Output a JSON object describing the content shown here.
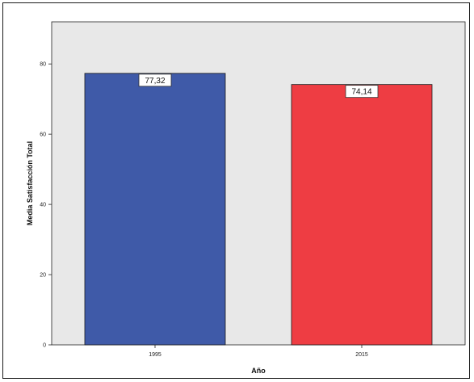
{
  "chart_data": {
    "type": "bar",
    "categories": [
      "1995",
      "2015"
    ],
    "values": [
      77.32,
      74.14
    ],
    "data_labels": [
      "77,32",
      "74,14"
    ],
    "title": "",
    "xlabel": "Año",
    "ylabel": "Media Satisfacción Total",
    "ylim": [
      0,
      92
    ],
    "yticks": [
      0,
      20,
      40,
      60,
      80
    ],
    "grid": false,
    "legend": "none",
    "colors": [
      "#3f5aa8",
      "#ee3d43"
    ],
    "plot_background": "#e8e8e8"
  }
}
